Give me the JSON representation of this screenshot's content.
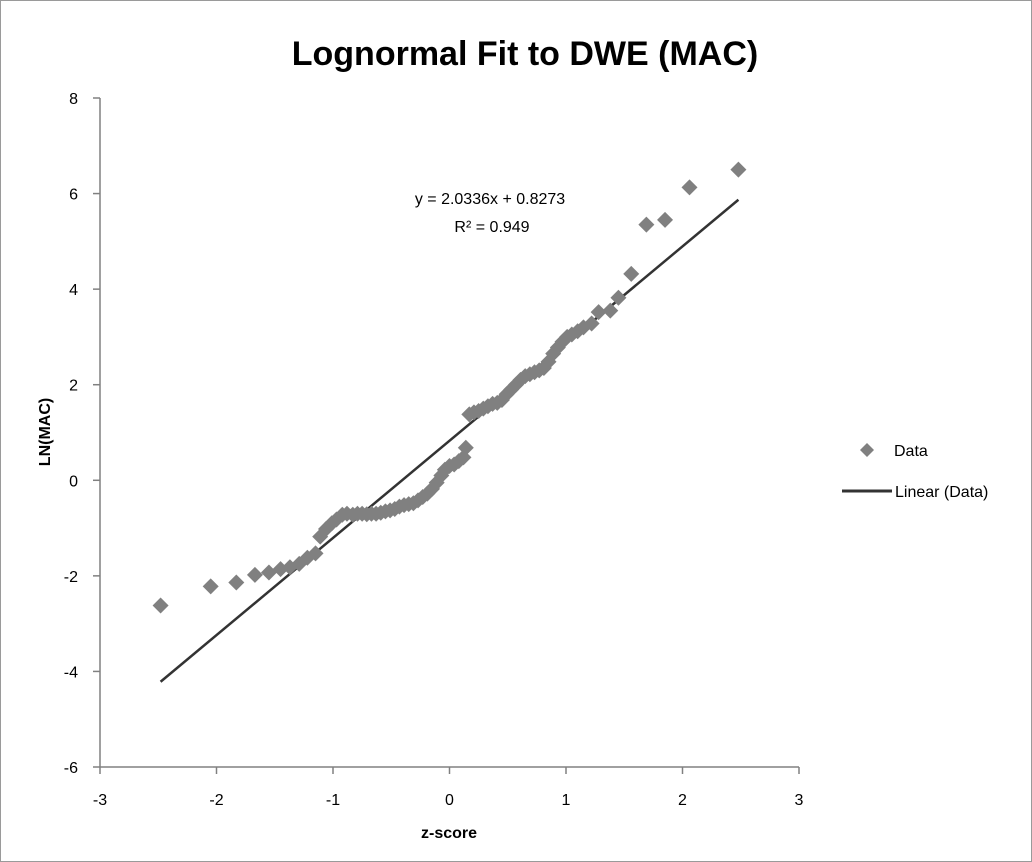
{
  "chart_data": {
    "type": "scatter",
    "title": "Lognormal Fit to DWE (MAC)",
    "xlabel": "z-score",
    "ylabel": "LN(MAC)",
    "xlim": [
      -3,
      3
    ],
    "ylim": [
      -6,
      8
    ],
    "x_ticks": [
      -3,
      -2,
      -1,
      0,
      1,
      2,
      3
    ],
    "y_ticks": [
      -6,
      -4,
      -2,
      0,
      2,
      4,
      6,
      8
    ],
    "x_tick_labels": [
      "-3",
      "-2",
      "-1",
      "0",
      "1",
      "2",
      "3"
    ],
    "y_tick_labels": [
      "-6",
      "-4",
      "-2",
      "0",
      "2",
      "4",
      "6",
      "8"
    ],
    "grid": false,
    "legend_position": "right",
    "series": [
      {
        "name": "Data",
        "marker": "diamond",
        "color": "#808080",
        "points": [
          [
            -2.48,
            -2.62
          ],
          [
            -2.05,
            -2.22
          ],
          [
            -1.83,
            -2.14
          ],
          [
            -1.67,
            -1.98
          ],
          [
            -1.55,
            -1.93
          ],
          [
            -1.45,
            -1.86
          ],
          [
            -1.37,
            -1.82
          ],
          [
            -1.29,
            -1.75
          ],
          [
            -1.22,
            -1.62
          ],
          [
            -1.15,
            -1.53
          ],
          [
            -1.11,
            -1.18
          ],
          [
            -1.06,
            -1.02
          ],
          [
            -1.01,
            -0.9
          ],
          [
            -0.97,
            -0.82
          ],
          [
            -0.92,
            -0.72
          ],
          [
            -0.88,
            -0.7
          ],
          [
            -0.83,
            -0.72
          ],
          [
            -0.79,
            -0.7
          ],
          [
            -0.75,
            -0.7
          ],
          [
            -0.71,
            -0.71
          ],
          [
            -0.67,
            -0.7
          ],
          [
            -0.63,
            -0.7
          ],
          [
            -0.59,
            -0.68
          ],
          [
            -0.55,
            -0.65
          ],
          [
            -0.51,
            -0.63
          ],
          [
            -0.47,
            -0.6
          ],
          [
            -0.43,
            -0.55
          ],
          [
            -0.39,
            -0.52
          ],
          [
            -0.35,
            -0.5
          ],
          [
            -0.31,
            -0.48
          ],
          [
            -0.27,
            -0.42
          ],
          [
            -0.23,
            -0.35
          ],
          [
            -0.19,
            -0.28
          ],
          [
            -0.15,
            -0.18
          ],
          [
            -0.11,
            -0.05
          ],
          [
            -0.07,
            0.1
          ],
          [
            -0.04,
            0.22
          ],
          [
            0.0,
            0.3
          ],
          [
            0.04,
            0.33
          ],
          [
            0.08,
            0.4
          ],
          [
            0.12,
            0.48
          ],
          [
            0.14,
            0.68
          ],
          [
            0.17,
            1.38
          ],
          [
            0.21,
            1.42
          ],
          [
            0.25,
            1.45
          ],
          [
            0.29,
            1.5
          ],
          [
            0.33,
            1.55
          ],
          [
            0.37,
            1.6
          ],
          [
            0.41,
            1.62
          ],
          [
            0.45,
            1.68
          ],
          [
            0.49,
            1.8
          ],
          [
            0.53,
            1.9
          ],
          [
            0.57,
            2.0
          ],
          [
            0.61,
            2.1
          ],
          [
            0.65,
            2.18
          ],
          [
            0.69,
            2.22
          ],
          [
            0.73,
            2.26
          ],
          [
            0.77,
            2.3
          ],
          [
            0.81,
            2.35
          ],
          [
            0.85,
            2.48
          ],
          [
            0.89,
            2.65
          ],
          [
            0.93,
            2.78
          ],
          [
            0.97,
            2.9
          ],
          [
            1.01,
            3.0
          ],
          [
            1.05,
            3.05
          ],
          [
            1.1,
            3.12
          ],
          [
            1.15,
            3.2
          ],
          [
            1.22,
            3.28
          ],
          [
            1.28,
            3.52
          ],
          [
            1.38,
            3.55
          ],
          [
            1.45,
            3.82
          ],
          [
            1.56,
            4.32
          ],
          [
            1.69,
            5.35
          ],
          [
            1.85,
            5.45
          ],
          [
            2.06,
            6.13
          ],
          [
            2.48,
            6.5
          ]
        ]
      }
    ],
    "trendline": {
      "name": "Linear (Data)",
      "type": "linear",
      "slope": 2.0336,
      "intercept": 0.8273,
      "x_range": [
        -2.48,
        2.48
      ],
      "color": "#333333"
    },
    "annotations": {
      "equation": "y = 2.0336x + 0.8273",
      "r_squared": "R² = 0.949"
    },
    "legend": [
      {
        "label": "Data",
        "symbol": "diamond",
        "color": "#808080"
      },
      {
        "label": "Linear (Data)",
        "symbol": "line",
        "color": "#333333"
      }
    ]
  }
}
